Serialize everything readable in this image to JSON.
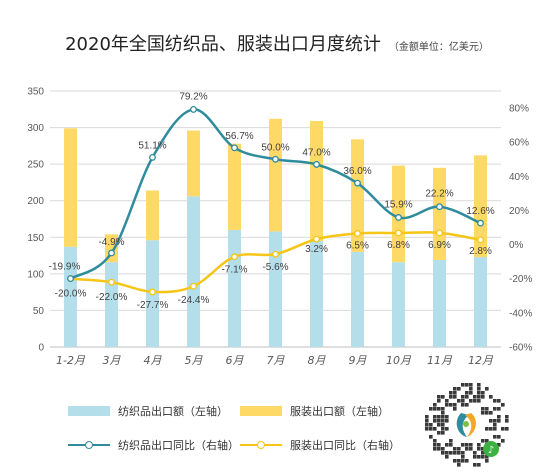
{
  "title": "2020年全国纺织品、服装出口月度统计",
  "unit_note": "（金额单位：亿美元）",
  "colors": {
    "textile_bar": "#b4dfea",
    "apparel_bar": "#ffd966",
    "textile_line": "#2e8c9c",
    "apparel_line": "#f5c518",
    "grid": "#d9d9d9",
    "axis_text": "#595959"
  },
  "legend": [
    {
      "label": "纺织品出口额（左轴）",
      "kind": "bar",
      "color": "#b4dfea"
    },
    {
      "label": "服装出口额（左轴）",
      "kind": "bar",
      "color": "#ffd966"
    },
    {
      "label": "纺织品出口同比（右轴）",
      "kind": "line",
      "color": "#2e8c9c"
    },
    {
      "label": "服装出口同比（右轴）",
      "kind": "line",
      "color": "#f5c518"
    }
  ],
  "qr_icon": "qr-code-with-logo",
  "chart_data": {
    "type": "bar",
    "stacked": true,
    "categories": [
      "1-2月",
      "3月",
      "4月",
      "5月",
      "6月",
      "7月",
      "8月",
      "9月",
      "10月",
      "11月",
      "12月"
    ],
    "series": [
      {
        "name": "纺织品出口额（左轴）",
        "axis": "left",
        "type": "bar",
        "values": [
          137,
          116,
          146,
          206,
          160,
          158,
          145,
          130,
          116,
          119,
          123
        ]
      },
      {
        "name": "服装出口额（左轴）",
        "axis": "left",
        "type": "bar",
        "values": [
          162,
          38,
          68,
          90,
          118,
          154,
          164,
          154,
          132,
          126,
          139
        ]
      },
      {
        "name": "纺织品出口同比（右轴）",
        "axis": "right",
        "type": "line",
        "values": [
          -19.9,
          -4.9,
          51.1,
          79.2,
          56.7,
          50.0,
          47.0,
          36.0,
          15.9,
          22.2,
          12.6
        ],
        "labels": [
          "-19.9%",
          "-4.9%",
          "51.1%",
          "79.2%",
          "56.7%",
          "50.0%",
          "47.0%",
          "36.0%",
          "15.9%",
          "22.2%",
          "12.6%"
        ]
      },
      {
        "name": "服装出口同比（右轴）",
        "axis": "right",
        "type": "line",
        "values": [
          -20.0,
          -22.0,
          -27.7,
          -24.4,
          -7.1,
          -5.6,
          3.2,
          6.5,
          6.8,
          6.9,
          2.8
        ],
        "labels": [
          "-20.0%",
          "-22.0%",
          "-27.7%",
          "-24.4%",
          "-7.1%",
          "-5.6%",
          "3.2%",
          "6.5%",
          "6.8%",
          "6.9%",
          "2.8%"
        ]
      }
    ],
    "left_axis": {
      "min": 0,
      "max": 350,
      "ticks": [
        "0",
        "50",
        "100",
        "150",
        "200",
        "250",
        "300",
        "350"
      ]
    },
    "right_axis": {
      "min": -60,
      "max": 90,
      "ticks": [
        "-60%",
        "-40%",
        "-20%",
        "0%",
        "20%",
        "40%",
        "60%",
        "80%"
      ]
    },
    "grid": true,
    "legend_position": "bottom"
  }
}
